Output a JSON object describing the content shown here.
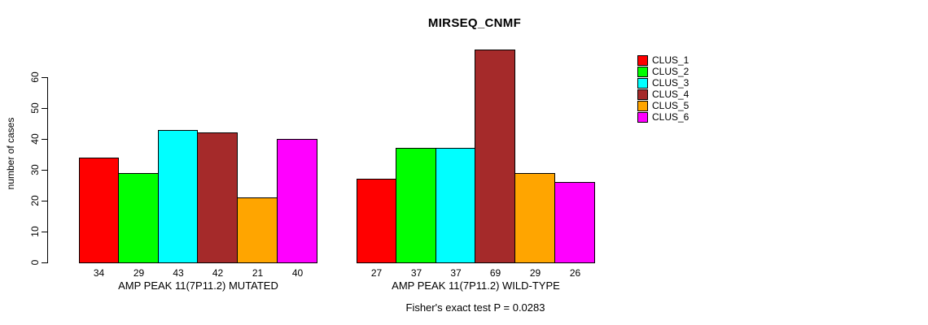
{
  "chart_data": {
    "type": "bar",
    "title": "MIRSEQ_CNMF",
    "ylabel": "number of cases",
    "xlabel": "",
    "ylim": [
      0,
      60
    ],
    "yticks": [
      0,
      10,
      20,
      30,
      40,
      50,
      60
    ],
    "grid": false,
    "legend_position": "right",
    "legend": [
      "CLUS_1",
      "CLUS_2",
      "CLUS_3",
      "CLUS_4",
      "CLUS_5",
      "CLUS_6"
    ],
    "colors": [
      "#FF0000",
      "#00FF00",
      "#00FFFF",
      "#A52A2A",
      "#FFA500",
      "#FF00FF"
    ],
    "categories": [
      "AMP PEAK 11(7P11.2) MUTATED",
      "AMP PEAK 11(7P11.2) WILD-TYPE"
    ],
    "groups": [
      {
        "label": "AMP PEAK 11(7P11.2) MUTATED",
        "values": [
          34,
          29,
          43,
          42,
          21,
          40
        ]
      },
      {
        "label": "AMP PEAK 11(7P11.2) WILD-TYPE",
        "values": [
          27,
          37,
          37,
          69,
          29,
          26
        ]
      }
    ],
    "bar_value_labels_shown": true,
    "footnote": "Fisher's exact test P = 0.0283"
  }
}
